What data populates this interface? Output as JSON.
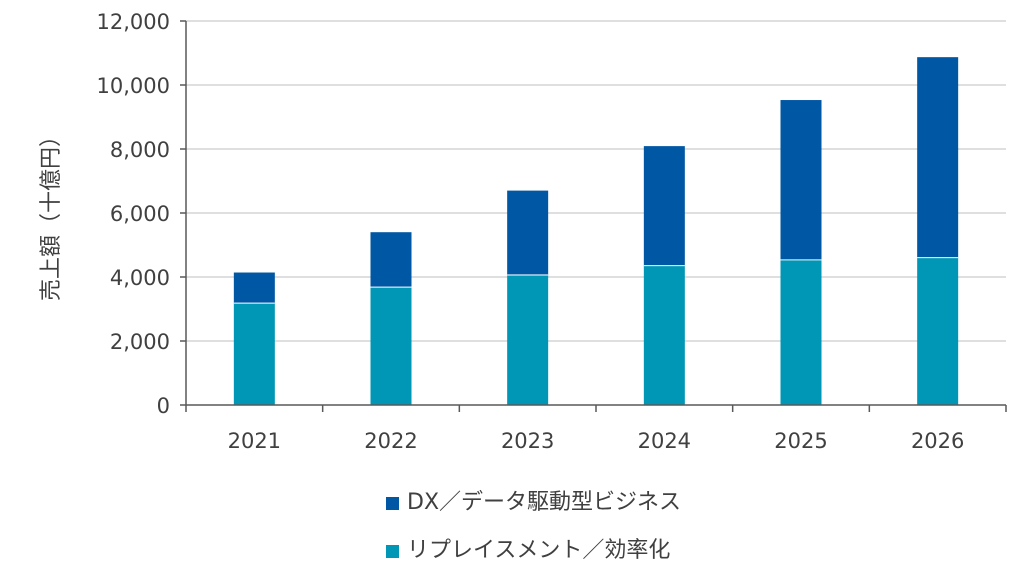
{
  "chart_data": {
    "type": "bar",
    "stacked": true,
    "title": "",
    "xlabel": "",
    "ylabel": "売上額（十億円）",
    "categories": [
      "2021",
      "2022",
      "2023",
      "2024",
      "2025",
      "2026"
    ],
    "series": [
      {
        "name": "リプレイスメント／効率化",
        "color": "#0097b6",
        "values": [
          3200,
          3700,
          4080,
          4370,
          4550,
          4620
        ]
      },
      {
        "name": "DX／データ駆動型ビジネス",
        "color": "#0057a3",
        "values": [
          940,
          1700,
          2620,
          3720,
          4980,
          6250
        ]
      }
    ],
    "ylim": [
      0,
      12000
    ],
    "yticks": [
      "0",
      "2,000",
      "4,000",
      "6,000",
      "8,000",
      "10,000",
      "12,000"
    ],
    "grid": true,
    "legend_position": "bottom",
    "legend_order": [
      1,
      0
    ]
  }
}
